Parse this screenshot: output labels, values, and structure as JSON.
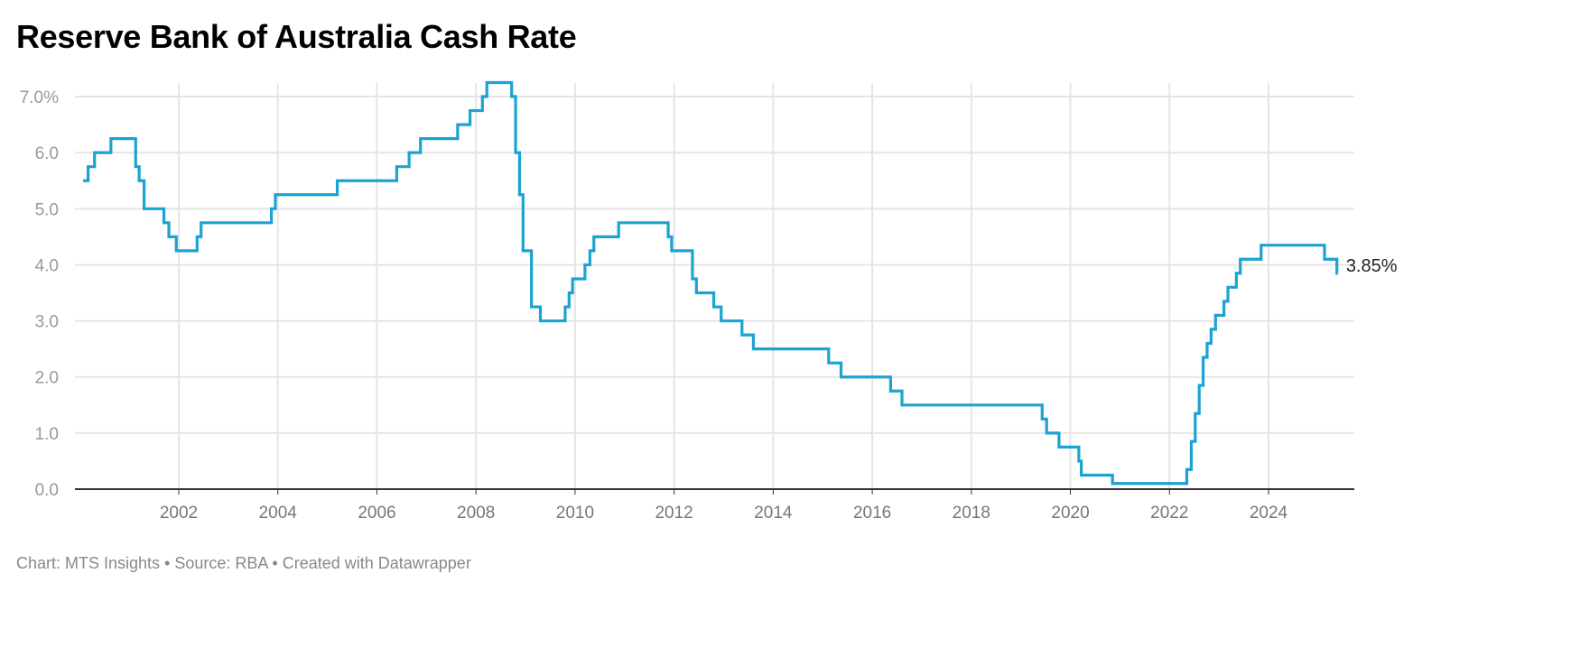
{
  "chart_data": {
    "type": "line",
    "step": true,
    "title": "Reserve Bank of Australia Cash Rate",
    "footer": "Chart: MTS Insights • Source: RBA • Created with Datawrapper",
    "xlabel": "",
    "ylabel": "",
    "xlim": [
      2000,
      2025.8
    ],
    "ylim": [
      0,
      7.0
    ],
    "grid": true,
    "x_ticks": [
      2002,
      2004,
      2006,
      2008,
      2010,
      2012,
      2014,
      2016,
      2018,
      2020,
      2022,
      2024
    ],
    "x_tick_labels": [
      "2002",
      "2004",
      "2006",
      "2008",
      "2010",
      "2012",
      "2014",
      "2016",
      "2018",
      "2020",
      "2022",
      "2024"
    ],
    "y_ticks": [
      0,
      1,
      2,
      3,
      4,
      5,
      6,
      7
    ],
    "y_tick_labels": [
      "0.0",
      "1.0",
      "2.0",
      "3.0",
      "4.0",
      "5.0",
      "6.0",
      "7.0%"
    ],
    "end_label": "3.85%",
    "colors": {
      "line": "#1ba3d1",
      "grid": "#e5e5e5",
      "axis": "#333333"
    },
    "series": [
      {
        "name": "Cash rate",
        "x": [
          2000.07,
          2000.17,
          2000.3,
          2000.63,
          2001.13,
          2001.2,
          2001.3,
          2001.7,
          2001.8,
          2001.95,
          2002.37,
          2002.45,
          2003.87,
          2003.95,
          2005.2,
          2006.4,
          2006.65,
          2006.88,
          2007.63,
          2007.88,
          2008.13,
          2008.22,
          2008.72,
          2008.8,
          2008.88,
          2008.95,
          2009.12,
          2009.3,
          2009.8,
          2009.88,
          2009.95,
          2010.2,
          2010.3,
          2010.38,
          2010.88,
          2011.88,
          2011.95,
          2012.37,
          2012.45,
          2012.8,
          2012.95,
          2013.37,
          2013.6,
          2015.12,
          2015.37,
          2016.37,
          2016.6,
          2019.43,
          2019.52,
          2019.77,
          2020.17,
          2020.22,
          2020.85,
          2022.35,
          2022.44,
          2022.52,
          2022.6,
          2022.68,
          2022.76,
          2022.84,
          2022.93,
          2023.1,
          2023.18,
          2023.35,
          2023.43,
          2023.85,
          2025.13,
          2025.38
        ],
        "values": [
          5.5,
          5.75,
          6.0,
          6.25,
          5.75,
          5.5,
          5.0,
          4.75,
          4.5,
          4.25,
          4.5,
          4.75,
          5.0,
          5.25,
          5.5,
          5.75,
          6.0,
          6.25,
          6.5,
          6.75,
          7.0,
          7.25,
          7.0,
          6.0,
          5.25,
          4.25,
          3.25,
          3.0,
          3.25,
          3.5,
          3.75,
          4.0,
          4.25,
          4.5,
          4.75,
          4.5,
          4.25,
          3.75,
          3.5,
          3.25,
          3.0,
          2.75,
          2.5,
          2.25,
          2.0,
          1.75,
          1.5,
          1.25,
          1.0,
          0.75,
          0.5,
          0.25,
          0.1,
          0.35,
          0.85,
          1.35,
          1.85,
          2.35,
          2.6,
          2.85,
          3.1,
          3.35,
          3.6,
          3.85,
          4.1,
          4.35,
          4.1,
          3.85
        ],
        "end_x": 2025.4
      }
    ]
  }
}
